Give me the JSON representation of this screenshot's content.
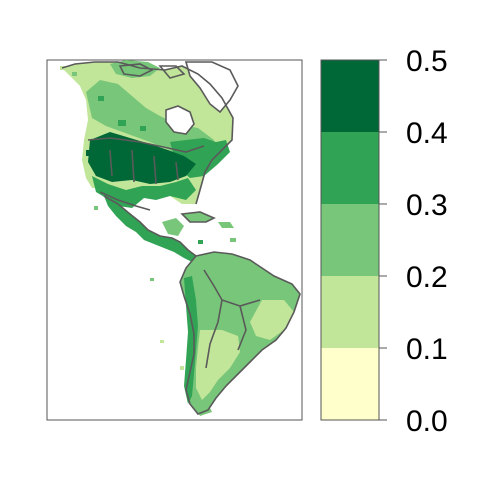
{
  "map": {
    "continents": [
      "north-america",
      "central-america",
      "south-america"
    ],
    "colors": {
      "panel_border": "#555555",
      "country_border": "#5a5a5a",
      "water": "#ffffff"
    },
    "legend": {
      "breaks": [
        "0.0",
        "0.1",
        "0.2",
        "0.3",
        "0.4",
        "0.5"
      ],
      "classes": [
        {
          "range": "0.0-0.1",
          "color": "#ffffcc"
        },
        {
          "range": "0.1-0.2",
          "color": "#c2e699"
        },
        {
          "range": "0.2-0.3",
          "color": "#78c679"
        },
        {
          "range": "0.3-0.4",
          "color": "#31a354"
        },
        {
          "range": "0.4-0.5",
          "color": "#006837"
        }
      ]
    }
  }
}
